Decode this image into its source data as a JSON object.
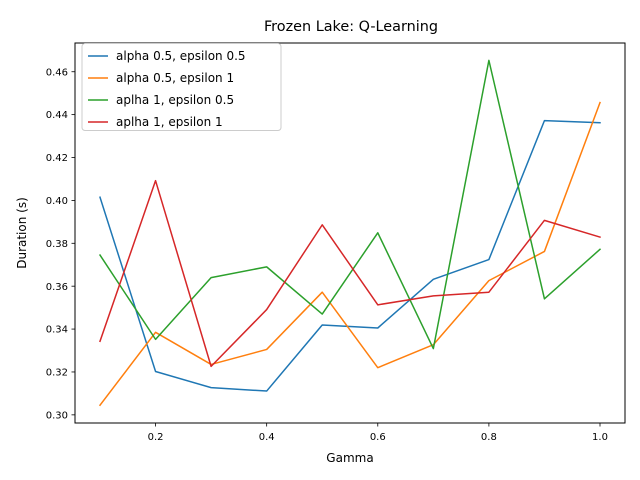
{
  "chart_data": {
    "type": "line",
    "title": "Frozen Lake: Q-Learning",
    "xlabel": "Gamma",
    "ylabel": "Duration (s)",
    "x": [
      0.1,
      0.2,
      0.3,
      0.4,
      0.5,
      0.6,
      0.7,
      0.8,
      0.9,
      1.0
    ],
    "xlim": [
      0.055,
      1.045
    ],
    "ylim": [
      0.2962,
      0.4734
    ],
    "xticks": [
      0.2,
      0.4,
      0.6,
      0.8,
      1.0
    ],
    "xtick_labels": [
      "0.2",
      "0.4",
      "0.6",
      "0.8",
      "1.0"
    ],
    "yticks": [
      0.3,
      0.32,
      0.34,
      0.36,
      0.38,
      0.4,
      0.42,
      0.44,
      0.46
    ],
    "ytick_labels": [
      "0.30",
      "0.32",
      "0.34",
      "0.36",
      "0.38",
      "0.40",
      "0.42",
      "0.44",
      "0.46"
    ],
    "grid": false,
    "legend_position": "top-left",
    "series": [
      {
        "name": "alpha 0.5, epsilon 0.5",
        "color": "#1f77b4",
        "values": [
          0.4015,
          0.3202,
          0.3127,
          0.3111,
          0.3419,
          0.3405,
          0.3632,
          0.3724,
          0.4372,
          0.4362
        ]
      },
      {
        "name": "alpha 0.5, epsilon 1",
        "color": "#ff7f0e",
        "values": [
          0.3045,
          0.3385,
          0.3235,
          0.3305,
          0.3572,
          0.322,
          0.3327,
          0.3626,
          0.3762,
          0.4456
        ]
      },
      {
        "name": "aplha 1, epsilon 0.5",
        "color": "#2ca02c",
        "values": [
          0.3745,
          0.3352,
          0.364,
          0.369,
          0.347,
          0.3849,
          0.3309,
          0.4653,
          0.3541,
          0.3772
        ]
      },
      {
        "name": "aplha 1, epsilon 1",
        "color": "#d62728",
        "values": [
          0.3343,
          0.4092,
          0.3226,
          0.3491,
          0.3886,
          0.3513,
          0.3555,
          0.3572,
          0.3907,
          0.3829
        ]
      }
    ]
  }
}
